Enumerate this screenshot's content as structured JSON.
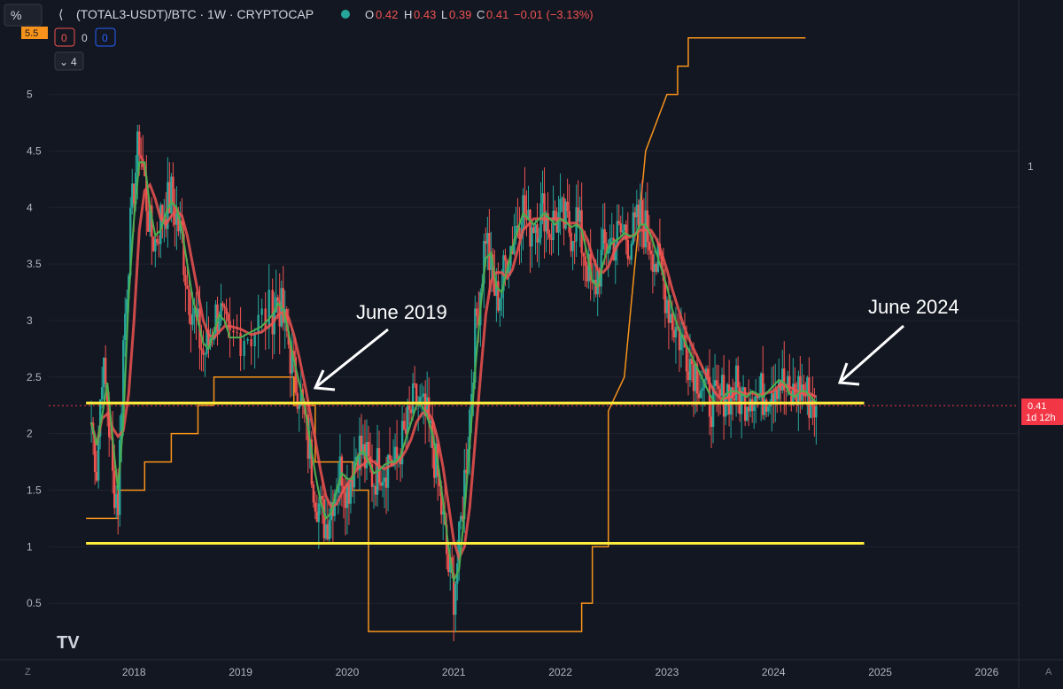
{
  "header": {
    "scale_button": "%",
    "symbol": "(TOTAL3-USDT)/BTC · 1W · CRYPTOCAP",
    "ohlc": {
      "o_label": "O",
      "o_value": "0.42",
      "h_label": "H",
      "h_value": "0.43",
      "l_label": "L",
      "l_value": "0.39",
      "c_label": "C",
      "c_value": "0.41",
      "change": "−0.01 (−3.13%)"
    },
    "indicator_values": [
      "0",
      "0",
      "0"
    ],
    "collapse_count": "4"
  },
  "price_label": {
    "value": "0.41",
    "countdown": "1d 12h"
  },
  "top_axis_badge": "5.5",
  "right_scale_label": "1",
  "bottom_left_button": "Z",
  "bottom_right_button": "A",
  "logo": "TV",
  "annotations": [
    {
      "text": "June 2019"
    },
    {
      "text": "June 2024"
    }
  ],
  "colors": {
    "background": "#131722",
    "up": "#26a69a",
    "down": "#ef5350",
    "fast_ma": "#4caf50",
    "slow_ma": "#ef5350",
    "step_line": "#f7931a",
    "support": "#ffeb3b",
    "price_label": "#f23645"
  },
  "chart_data": {
    "type": "line",
    "y_ticks": [
      "0.5",
      "1",
      "1.5",
      "2",
      "2.5",
      "3",
      "3.5",
      "4",
      "4.5",
      "5"
    ],
    "x_ticks": [
      "2018",
      "2019",
      "2020",
      "2021",
      "2022",
      "2023",
      "2024",
      "2025",
      "2026"
    ],
    "ylim": [
      0,
      5.6
    ],
    "xlim": [
      2017.2,
      2026.3
    ],
    "current_price": 0.41,
    "horizontal_lines": [
      {
        "y": 2.27,
        "x_start": 2017.55,
        "x_end": 2024.85
      },
      {
        "y": 1.03,
        "x_start": 2017.55,
        "x_end": 2024.85
      }
    ],
    "series": [
      {
        "type": "candles",
        "points": [
          [
            2017.6,
            2.1
          ],
          [
            2017.65,
            1.7
          ],
          [
            2017.7,
            2.6
          ],
          [
            2017.75,
            2.3
          ],
          [
            2017.8,
            1.6
          ],
          [
            2017.85,
            1.4
          ],
          [
            2017.9,
            2.8
          ],
          [
            2017.95,
            3.6
          ],
          [
            2018.0,
            4.2
          ],
          [
            2018.05,
            4.6
          ],
          [
            2018.1,
            4.2
          ],
          [
            2018.15,
            3.8
          ],
          [
            2018.2,
            3.7
          ],
          [
            2018.25,
            3.9
          ],
          [
            2018.3,
            4.0
          ],
          [
            2018.35,
            4.1
          ],
          [
            2018.4,
            3.9
          ],
          [
            2018.45,
            3.7
          ],
          [
            2018.5,
            3.3
          ],
          [
            2018.55,
            3.1
          ],
          [
            2018.6,
            2.9
          ],
          [
            2018.65,
            2.7
          ],
          [
            2018.7,
            2.8
          ],
          [
            2018.75,
            3.0
          ],
          [
            2018.8,
            3.1
          ],
          [
            2018.85,
            2.9
          ],
          [
            2018.9,
            2.8
          ],
          [
            2019.0,
            2.9
          ],
          [
            2019.1,
            2.9
          ],
          [
            2019.2,
            3.0
          ],
          [
            2019.3,
            3.1
          ],
          [
            2019.35,
            3.2
          ],
          [
            2019.4,
            3.0
          ],
          [
            2019.45,
            2.8
          ],
          [
            2019.5,
            2.5
          ],
          [
            2019.55,
            2.4
          ],
          [
            2019.6,
            2.1
          ],
          [
            2019.65,
            1.8
          ],
          [
            2019.7,
            1.5
          ],
          [
            2019.75,
            1.3
          ],
          [
            2019.8,
            1.2
          ],
          [
            2019.85,
            1.4
          ],
          [
            2019.9,
            1.6
          ],
          [
            2019.95,
            1.7
          ],
          [
            2020.0,
            1.5
          ],
          [
            2020.05,
            1.7
          ],
          [
            2020.1,
            1.9
          ],
          [
            2020.15,
            1.8
          ],
          [
            2020.2,
            1.7
          ],
          [
            2020.25,
            1.6
          ],
          [
            2020.3,
            1.75
          ],
          [
            2020.35,
            1.7
          ],
          [
            2020.4,
            1.8
          ],
          [
            2020.45,
            1.7
          ],
          [
            2020.5,
            1.9
          ],
          [
            2020.55,
            2.0
          ],
          [
            2020.6,
            2.2
          ],
          [
            2020.65,
            2.3
          ],
          [
            2020.7,
            2.2
          ],
          [
            2020.75,
            2.1
          ],
          [
            2020.8,
            1.9
          ],
          [
            2020.85,
            1.6
          ],
          [
            2020.9,
            1.2
          ],
          [
            2020.95,
            0.8
          ],
          [
            2021.0,
            0.6
          ],
          [
            2021.05,
            1.0
          ],
          [
            2021.1,
            1.6
          ],
          [
            2021.15,
            2.2
          ],
          [
            2021.2,
            2.9
          ],
          [
            2021.25,
            3.3
          ],
          [
            2021.3,
            3.8
          ],
          [
            2021.35,
            3.4
          ],
          [
            2021.4,
            3.2
          ],
          [
            2021.45,
            3.3
          ],
          [
            2021.5,
            3.6
          ],
          [
            2021.55,
            3.7
          ],
          [
            2021.6,
            3.9
          ],
          [
            2021.65,
            4.0
          ],
          [
            2021.7,
            3.8
          ],
          [
            2021.75,
            3.9
          ],
          [
            2021.8,
            3.9
          ],
          [
            2021.85,
            4.0
          ],
          [
            2021.9,
            3.8
          ],
          [
            2021.95,
            3.9
          ],
          [
            2022.0,
            3.9
          ],
          [
            2022.05,
            3.85
          ],
          [
            2022.1,
            3.8
          ],
          [
            2022.15,
            3.9
          ],
          [
            2022.2,
            3.7
          ],
          [
            2022.25,
            3.5
          ],
          [
            2022.3,
            3.2
          ],
          [
            2022.35,
            3.4
          ],
          [
            2022.4,
            3.6
          ],
          [
            2022.45,
            3.7
          ],
          [
            2022.5,
            3.7
          ],
          [
            2022.55,
            3.75
          ],
          [
            2022.6,
            3.8
          ],
          [
            2022.65,
            3.7
          ],
          [
            2022.7,
            3.8
          ],
          [
            2022.75,
            3.9
          ],
          [
            2022.8,
            3.8
          ],
          [
            2022.85,
            3.7
          ],
          [
            2022.9,
            3.5
          ],
          [
            2022.95,
            3.4
          ],
          [
            2023.0,
            3.2
          ],
          [
            2023.05,
            3.0
          ],
          [
            2023.1,
            2.9
          ],
          [
            2023.15,
            2.8
          ],
          [
            2023.2,
            2.7
          ],
          [
            2023.25,
            2.6
          ],
          [
            2023.3,
            2.5
          ],
          [
            2023.35,
            2.4
          ],
          [
            2023.4,
            2.3
          ],
          [
            2023.45,
            2.25
          ],
          [
            2023.5,
            2.3
          ],
          [
            2023.55,
            2.4
          ],
          [
            2023.6,
            2.35
          ],
          [
            2023.65,
            2.4
          ],
          [
            2023.7,
            2.3
          ],
          [
            2023.75,
            2.35
          ],
          [
            2023.8,
            2.4
          ],
          [
            2023.85,
            2.3
          ],
          [
            2023.9,
            2.35
          ],
          [
            2023.95,
            2.4
          ],
          [
            2024.0,
            2.45
          ],
          [
            2024.05,
            2.5
          ],
          [
            2024.1,
            2.4
          ],
          [
            2024.15,
            2.3
          ],
          [
            2024.2,
            2.35
          ],
          [
            2024.25,
            2.4
          ],
          [
            2024.3,
            2.35
          ],
          [
            2024.35,
            2.3
          ],
          [
            2024.4,
            2.25
          ]
        ]
      },
      {
        "name": "",
        "type": "step",
        "points": [
          [
            2017.55,
            1.25
          ],
          [
            2017.85,
            1.25
          ],
          [
            2017.85,
            1.5
          ],
          [
            2018.1,
            1.5
          ],
          [
            2018.1,
            1.75
          ],
          [
            2018.35,
            1.75
          ],
          [
            2018.35,
            2.0
          ],
          [
            2018.6,
            2.0
          ],
          [
            2018.6,
            2.25
          ],
          [
            2018.75,
            2.25
          ],
          [
            2018.75,
            2.5
          ],
          [
            2019.5,
            2.5
          ],
          [
            2019.5,
            2.25
          ],
          [
            2019.7,
            2.25
          ],
          [
            2019.7,
            1.75
          ],
          [
            2020.05,
            1.75
          ],
          [
            2020.05,
            1.5
          ],
          [
            2020.2,
            1.5
          ],
          [
            2020.2,
            0.25
          ],
          [
            2022.2,
            0.25
          ],
          [
            2022.2,
            0.5
          ],
          [
            2022.3,
            0.5
          ],
          [
            2022.3,
            1.0
          ],
          [
            2022.45,
            1.0
          ],
          [
            2022.45,
            2.2
          ],
          [
            2022.6,
            2.5
          ],
          [
            2022.7,
            3.5
          ],
          [
            2022.8,
            4.5
          ],
          [
            2023.0,
            5.0
          ],
          [
            2023.1,
            5.0
          ],
          [
            2023.1,
            5.25
          ],
          [
            2023.2,
            5.25
          ],
          [
            2023.2,
            5.5
          ],
          [
            2024.3,
            5.5
          ]
        ]
      }
    ]
  }
}
